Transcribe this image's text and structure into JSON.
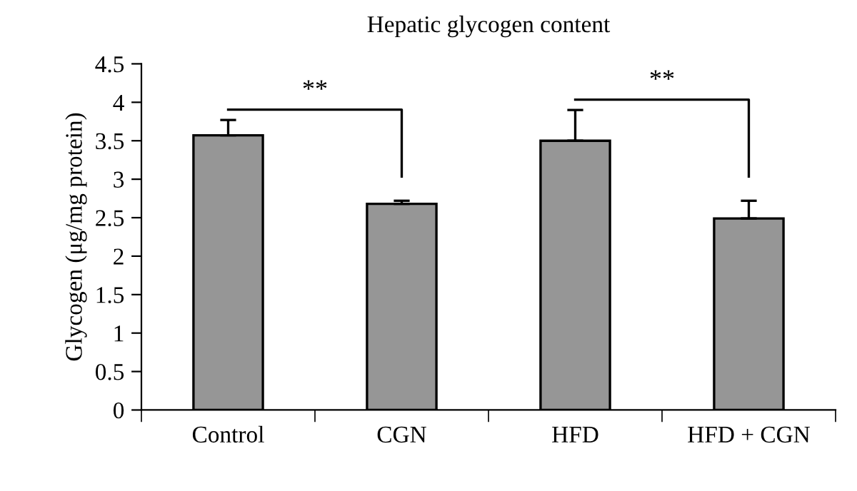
{
  "chart_data": {
    "type": "bar",
    "title": "Hepatic glycogen content",
    "ylabel": "Glycogen (μg/mg protein)",
    "categories": [
      "Control",
      "CGN",
      "HFD",
      "HFD + CGN"
    ],
    "values": [
      3.57,
      2.68,
      3.5,
      2.49
    ],
    "errors": [
      0.2,
      0.04,
      0.4,
      0.23
    ],
    "color": "#969696",
    "ylim": [
      0,
      4.5
    ],
    "yticks": [
      0,
      0.5,
      1,
      1.5,
      2,
      2.5,
      3,
      3.5,
      4,
      4.5
    ],
    "annotations": [
      "**",
      "**"
    ],
    "grid": false,
    "legend": false
  }
}
